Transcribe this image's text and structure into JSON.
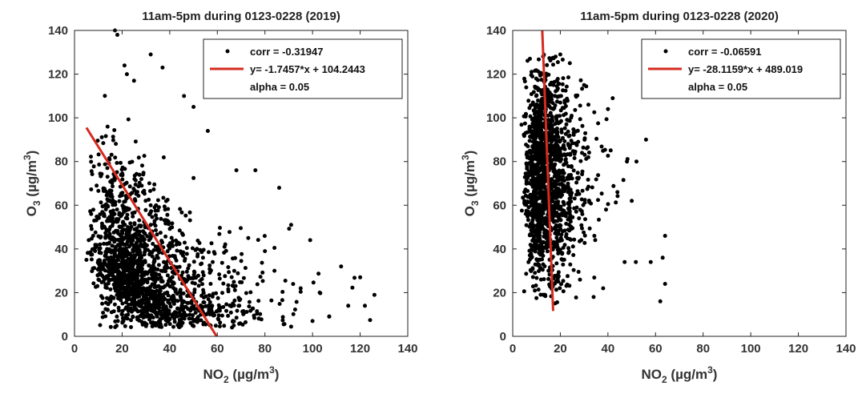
{
  "chart_data": [
    {
      "type": "scatter",
      "title": "11am-5pm during 0123-0228 (2019)",
      "xlabel": {
        "base": "NO",
        "sub": "2",
        "unit_pre": " (µg/m",
        "sup": "3",
        "unit_post": ")"
      },
      "ylabel": {
        "base": "O",
        "sub": "3",
        "unit_pre": " (µg/m",
        "sup": "3",
        "unit_post": ")"
      },
      "xlim": [
        0,
        140
      ],
      "ylim": [
        0,
        140
      ],
      "xticks": [
        0,
        20,
        40,
        60,
        80,
        100,
        120,
        140
      ],
      "yticks": [
        0,
        20,
        40,
        60,
        80,
        100,
        120,
        140
      ],
      "grid": false,
      "legend_position": "top-right",
      "legend": {
        "points_label": "corr = -0.31947",
        "fit_label": "y= -1.7457*x + 104.2443",
        "alpha_label": "alpha = 0.05"
      },
      "marker_color": "#000000",
      "fit_color": "#d62a1e",
      "fit": {
        "slope": -1.7457,
        "intercept": 104.2443,
        "x_range": [
          5,
          59.7
        ]
      },
      "cloud": {
        "approx_points": 1700,
        "x_median": 28,
        "x_spread": 17,
        "x_min": 5,
        "x_max": 126,
        "y_floor": 4,
        "y_peak_at_x0": 80,
        "y_decay_per_x": -0.9
      },
      "points": [
        {
          "x": 17,
          "y": 140
        },
        {
          "x": 18,
          "y": 138
        },
        {
          "x": 21,
          "y": 124
        },
        {
          "x": 22,
          "y": 120
        },
        {
          "x": 25,
          "y": 117
        },
        {
          "x": 32,
          "y": 129
        },
        {
          "x": 37,
          "y": 123
        },
        {
          "x": 46,
          "y": 110
        },
        {
          "x": 50,
          "y": 105
        },
        {
          "x": 56,
          "y": 94
        },
        {
          "x": 68,
          "y": 76
        },
        {
          "x": 76,
          "y": 76
        },
        {
          "x": 86,
          "y": 68
        },
        {
          "x": 91,
          "y": 51
        },
        {
          "x": 99,
          "y": 44
        },
        {
          "x": 112,
          "y": 32
        },
        {
          "x": 120,
          "y": 27
        },
        {
          "x": 126,
          "y": 19
        },
        {
          "x": 122,
          "y": 14
        },
        {
          "x": 103,
          "y": 20
        },
        {
          "x": 95,
          "y": 22
        },
        {
          "x": 84,
          "y": 30
        },
        {
          "x": 80,
          "y": 39
        },
        {
          "x": 73,
          "y": 45
        },
        {
          "x": 100,
          "y": 7
        },
        {
          "x": 107,
          "y": 9
        },
        {
          "x": 115,
          "y": 14
        },
        {
          "x": 6,
          "y": 44
        },
        {
          "x": 7,
          "y": 56
        },
        {
          "x": 5,
          "y": 35
        }
      ]
    },
    {
      "type": "scatter",
      "title": "11am-5pm during 0123-0228 (2020)",
      "xlabel": {
        "base": "NO",
        "sub": "2",
        "unit_pre": " (µg/m",
        "sup": "3",
        "unit_post": ")"
      },
      "ylabel": {
        "base": "O",
        "sub": "3",
        "unit_pre": " (µg/m",
        "sup": "3",
        "unit_post": ")"
      },
      "xlim": [
        0,
        140
      ],
      "ylim": [
        0,
        140
      ],
      "xticks": [
        0,
        20,
        40,
        60,
        80,
        100,
        120,
        140
      ],
      "yticks": [
        0,
        20,
        40,
        60,
        80,
        100,
        120,
        140
      ],
      "grid": false,
      "legend_position": "top-right",
      "legend": {
        "points_label": "corr = -0.06591",
        "fit_label": "y= -28.1159*x + 489.019",
        "alpha_label": "alpha = 0.05"
      },
      "marker_color": "#000000",
      "fit_color": "#d62a1e",
      "fit": {
        "slope": -28.1159,
        "intercept": 489.019,
        "x_range": [
          12.42,
          16.98
        ]
      },
      "cloud": {
        "approx_points": 1500,
        "x_median": 14,
        "x_spread": 8,
        "x_min": 1,
        "x_max": 64,
        "y_mean": 72,
        "y_spread": 24,
        "y_min": 15,
        "y_max": 129
      },
      "points": [
        {
          "x": 56,
          "y": 90
        },
        {
          "x": 64,
          "y": 46
        },
        {
          "x": 63,
          "y": 36
        },
        {
          "x": 64,
          "y": 24
        },
        {
          "x": 62,
          "y": 16
        },
        {
          "x": 58,
          "y": 34
        },
        {
          "x": 48,
          "y": 80
        },
        {
          "x": 52,
          "y": 80
        },
        {
          "x": 42,
          "y": 109
        },
        {
          "x": 40,
          "y": 104
        },
        {
          "x": 44,
          "y": 66
        },
        {
          "x": 50,
          "y": 62
        },
        {
          "x": 34,
          "y": 18
        },
        {
          "x": 38,
          "y": 22
        },
        {
          "x": 47,
          "y": 34
        },
        {
          "x": 18,
          "y": 128
        },
        {
          "x": 20,
          "y": 129
        },
        {
          "x": 24,
          "y": 125
        },
        {
          "x": 30,
          "y": 115
        }
      ]
    }
  ]
}
